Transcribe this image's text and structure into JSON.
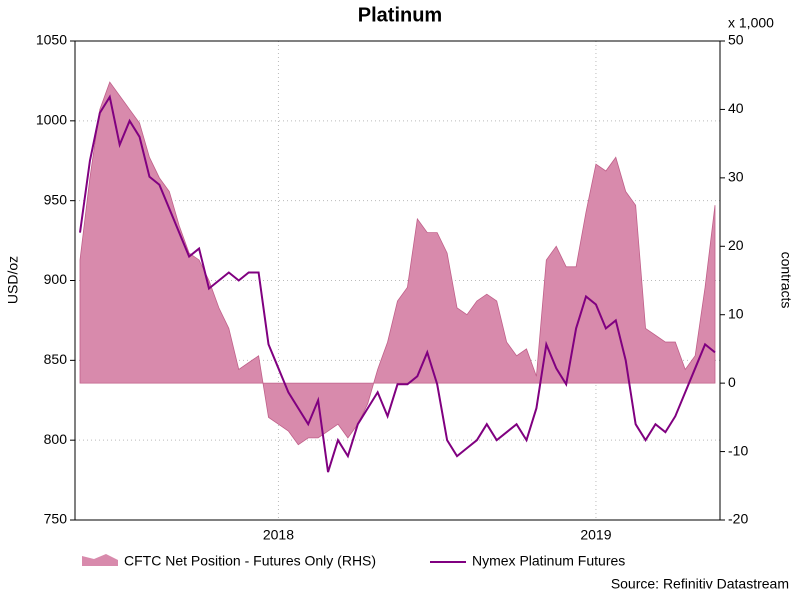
{
  "chart_data": {
    "type": "area-line",
    "title": "Platinum",
    "y_label": "USD/oz",
    "y2_label": "contracts",
    "y2_unit": "x 1,000",
    "source": "Source: Refinitiv Datastream",
    "categories": [
      null,
      null,
      null,
      null,
      null,
      null,
      null,
      null,
      null,
      null,
      null,
      null,
      null,
      null,
      null,
      null,
      null,
      null,
      null,
      null,
      "2018",
      null,
      null,
      null,
      null,
      null,
      null,
      null,
      null,
      null,
      null,
      null,
      null,
      null,
      null,
      null,
      null,
      null,
      null,
      null,
      null,
      null,
      null,
      null,
      null,
      null,
      null,
      null,
      null,
      null,
      null,
      null,
      "2019",
      null,
      null,
      null,
      null,
      null,
      null,
      null,
      null,
      null,
      null,
      null,
      null
    ],
    "series": [
      {
        "name": "CFTC Net Position - Futures Only (RHS)",
        "kind": "area",
        "axis": "y2",
        "color": "#d88aac",
        "values": [
          18,
          30,
          40,
          44,
          42,
          40,
          38,
          33,
          30,
          28,
          23,
          19,
          18,
          15,
          11,
          8,
          2,
          3,
          4,
          -5,
          -6,
          -7,
          -9,
          -8,
          -8,
          -7,
          -6,
          -8,
          -6,
          -3,
          2,
          6,
          12,
          14,
          24,
          22,
          22,
          19,
          11,
          10,
          12,
          13,
          12,
          6,
          4,
          5,
          1,
          18,
          20,
          17,
          17,
          25,
          32,
          31,
          33,
          28,
          26,
          8,
          7,
          6,
          6,
          2,
          4,
          14,
          26
        ]
      },
      {
        "name": "Nymex Platinum Futures",
        "kind": "line",
        "axis": "y",
        "color": "#800080",
        "values": [
          930,
          975,
          1005,
          1015,
          985,
          1000,
          990,
          965,
          960,
          945,
          930,
          915,
          920,
          895,
          900,
          905,
          900,
          905,
          905,
          860,
          845,
          830,
          820,
          810,
          825,
          780,
          800,
          790,
          810,
          820,
          830,
          815,
          835,
          835,
          840,
          855,
          835,
          800,
          790,
          795,
          800,
          810,
          800,
          805,
          810,
          800,
          820,
          860,
          845,
          835,
          870,
          890,
          885,
          870,
          875,
          850,
          810,
          800,
          810,
          805,
          815,
          830,
          845,
          860,
          855
        ]
      }
    ],
    "ylim": [
      750,
      1050
    ],
    "yticks": [
      750,
      800,
      850,
      900,
      950,
      1000,
      1050
    ],
    "y2lim": [
      -20,
      50
    ],
    "y2ticks": [
      -20,
      -10,
      0,
      10,
      20,
      30,
      40,
      50
    ],
    "grid": true
  }
}
